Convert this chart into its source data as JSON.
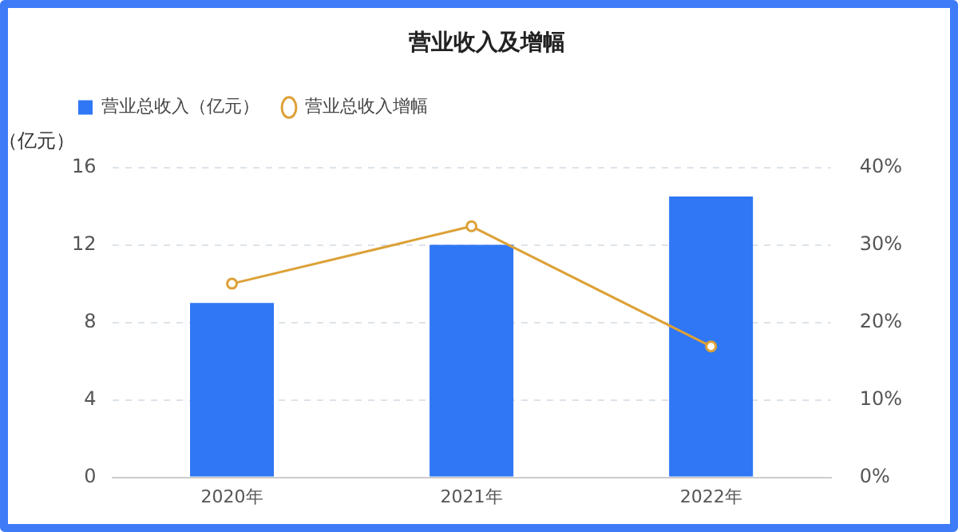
{
  "chart_data": {
    "type": "bar",
    "title": "营业收入及增幅",
    "ylabel": "（亿元）",
    "categories": [
      "2020年",
      "2021年",
      "2022年"
    ],
    "series": [
      {
        "name": "营业总收入（亿元）",
        "color": "#2f77f5",
        "values": [
          9.0,
          12.0,
          14.5
        ]
      },
      {
        "name": "营业总收入增幅",
        "type": "line",
        "axis": "y2",
        "color": "#dca137",
        "values": [
          25,
          32.4,
          16.9
        ]
      }
    ],
    "ylim": [
      0,
      16
    ],
    "yticks": [
      0,
      4,
      8,
      12,
      16
    ],
    "y2lim": [
      0,
      40
    ],
    "y2ticks": [
      {
        "value": 0,
        "label": "0%"
      },
      {
        "value": 10,
        "label": "10%"
      },
      {
        "value": 20,
        "label": "20%"
      },
      {
        "value": 30,
        "label": "30%"
      },
      {
        "value": 40,
        "label": "40%"
      }
    ],
    "grid": "y",
    "legend": "top left",
    "marker": "circle"
  }
}
